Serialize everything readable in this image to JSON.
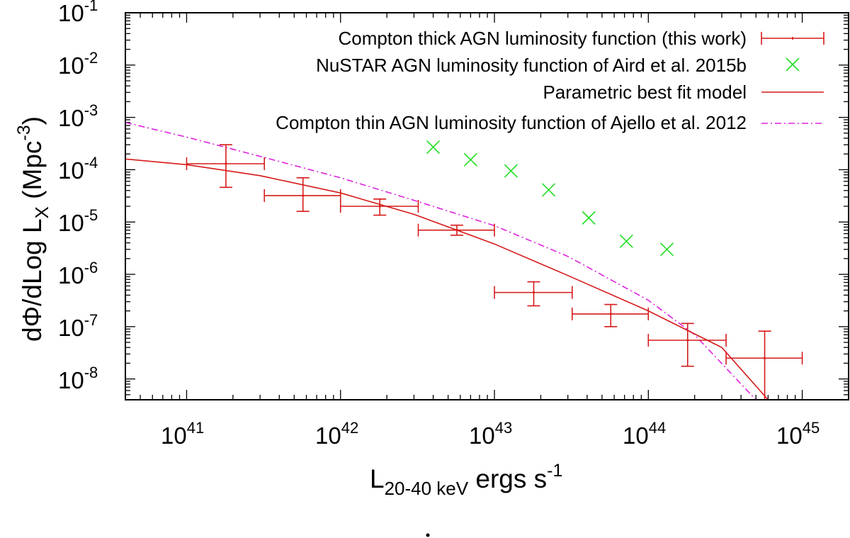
{
  "chart_data": {
    "type": "scatter",
    "title": "",
    "xscale": "log",
    "yscale": "log",
    "xlim": [
      4e+40,
      2e+45
    ],
    "ylim": [
      4e-09,
      0.1
    ],
    "x_ticks": [
      {
        "base": "10",
        "exp": "41",
        "value": 1e+41
      },
      {
        "base": "10",
        "exp": "42",
        "value": 1e+42
      },
      {
        "base": "10",
        "exp": "43",
        "value": 1e+43
      },
      {
        "base": "10",
        "exp": "44",
        "value": 1e+44
      },
      {
        "base": "10",
        "exp": "45",
        "value": 1e+45
      }
    ],
    "y_ticks": [
      {
        "base": "10",
        "exp": "-1",
        "value": 0.1
      },
      {
        "base": "10",
        "exp": "-2",
        "value": 0.01
      },
      {
        "base": "10",
        "exp": "-3",
        "value": 0.001
      },
      {
        "base": "10",
        "exp": "-4",
        "value": 0.0001
      },
      {
        "base": "10",
        "exp": "-5",
        "value": 1e-05
      },
      {
        "base": "10",
        "exp": "-6",
        "value": 1e-06
      },
      {
        "base": "10",
        "exp": "-7",
        "value": 1e-07
      },
      {
        "base": "10",
        "exp": "-8",
        "value": 1e-08
      }
    ],
    "xlabel": {
      "main": "L",
      "sub": "20-40 keV",
      "rest": " ergs s",
      "sup": "-1"
    },
    "ylabel": {
      "main": "dΦ/dLog L",
      "sub": "X",
      "rest": " (Mpc",
      "sup": "-3",
      "close": ")"
    },
    "series": [
      {
        "name": "Compton thick AGN luminosity function (this work)",
        "kind": "errorbars",
        "color": "#d61a1a",
        "points": [
          {
            "x": 1.8e+41,
            "y": 0.00013,
            "xlo": 1e+41,
            "xhi": 3.2e+41,
            "ylo": 4.6e-05,
            "yhi": 0.0003
          },
          {
            "x": 5.7e+41,
            "y": 3.2e-05,
            "xlo": 3.2e+41,
            "xhi": 1e+42,
            "ylo": 1.6e-05,
            "yhi": 7e-05
          },
          {
            "x": 1.8e+42,
            "y": 2e-05,
            "xlo": 1e+42,
            "xhi": 3.2e+42,
            "ylo": 1.35e-05,
            "yhi": 2.75e-05
          },
          {
            "x": 5.7e+42,
            "y": 7e-06,
            "xlo": 3.2e+42,
            "xhi": 1e+43,
            "ylo": 5.6e-06,
            "yhi": 8.7e-06
          },
          {
            "x": 1.8e+43,
            "y": 4.5e-07,
            "xlo": 1e+43,
            "xhi": 3.2e+43,
            "ylo": 2.5e-07,
            "yhi": 7.2e-07
          },
          {
            "x": 5.7e+43,
            "y": 1.75e-07,
            "xlo": 3.2e+43,
            "xhi": 1e+44,
            "ylo": 1e-07,
            "yhi": 2.65e-07
          },
          {
            "x": 1.8e+44,
            "y": 5.5e-08,
            "xlo": 1e+44,
            "xhi": 3.2e+44,
            "ylo": 1.75e-08,
            "yhi": 1.15e-07
          },
          {
            "x": 5.7e+44,
            "y": 2.5e-08,
            "xlo": 3.2e+44,
            "xhi": 1e+45,
            "ylo": 4e-09,
            "yhi": 8.2e-08
          }
        ]
      },
      {
        "name": "NuSTAR AGN luminosity function of Aird et al. 2015b",
        "kind": "markers",
        "color": "#22dd22",
        "points": [
          {
            "x": 4e+42,
            "y": 0.00027
          },
          {
            "x": 7e+42,
            "y": 0.000155
          },
          {
            "x": 1.28e+43,
            "y": 9.5e-05
          },
          {
            "x": 2.25e+43,
            "y": 4.1e-05
          },
          {
            "x": 4.1e+43,
            "y": 1.2e-05
          },
          {
            "x": 7.2e+43,
            "y": 4.3e-06
          },
          {
            "x": 1.32e+44,
            "y": 3e-06
          }
        ]
      },
      {
        "name": "Parametric best fit model",
        "kind": "line",
        "color": "#d61a1a",
        "dash": "solid",
        "points": [
          {
            "x": 4e+40,
            "y": 0.00016
          },
          {
            "x": 1e+41,
            "y": 0.000125
          },
          {
            "x": 3e+41,
            "y": 7.7e-05
          },
          {
            "x": 1e+42,
            "y": 3.6e-05
          },
          {
            "x": 3e+42,
            "y": 1.4e-05
          },
          {
            "x": 1e+43,
            "y": 3.8e-06
          },
          {
            "x": 3e+43,
            "y": 9.5e-07
          },
          {
            "x": 1e+44,
            "y": 2e-07
          },
          {
            "x": 3e+44,
            "y": 4e-08
          },
          {
            "x": 6e+44,
            "y": 4e-09
          }
        ]
      },
      {
        "name": "Compton thin AGN luminosity function of Ajello et al. 2012",
        "kind": "line",
        "color": "#dd22dd",
        "dash": "dashdot",
        "points": [
          {
            "x": 4e+40,
            "y": 0.0008
          },
          {
            "x": 1e+41,
            "y": 0.00042
          },
          {
            "x": 3e+41,
            "y": 0.00018
          },
          {
            "x": 1e+42,
            "y": 7e-05
          },
          {
            "x": 3e+42,
            "y": 2.6e-05
          },
          {
            "x": 1e+43,
            "y": 8.5e-06
          },
          {
            "x": 3e+43,
            "y": 2.2e-06
          },
          {
            "x": 1e+44,
            "y": 3.2e-07
          },
          {
            "x": 2e+44,
            "y": 7e-08
          },
          {
            "x": 5e+44,
            "y": 4e-09
          }
        ]
      }
    ]
  }
}
